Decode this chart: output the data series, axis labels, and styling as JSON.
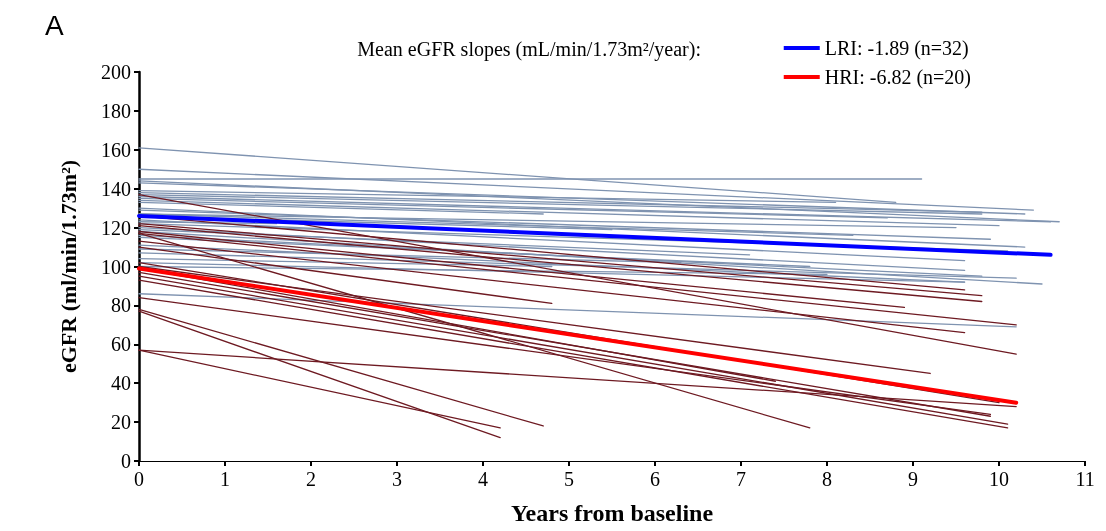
{
  "chart_data": {
    "type": "line",
    "title": "A",
    "xlabel": "Years from baseline",
    "ylabel": "eGFR (ml/min/1.73m²)",
    "legend_title": "Mean eGFR slopes (mL/min/1.73m²/year):",
    "xlim": [
      0,
      11
    ],
    "xticks": [
      0,
      1,
      2,
      3,
      4,
      5,
      6,
      7,
      8,
      9,
      10,
      11
    ],
    "ylim": [
      0,
      200
    ],
    "yticks": [
      0,
      20,
      40,
      60,
      80,
      100,
      120,
      140,
      160,
      180,
      200
    ],
    "grid": false,
    "legend": "top right",
    "marker": "none",
    "line_style": "solid",
    "series": [
      {
        "color": "#7f93b0",
        "x": [
          0,
          8.8
        ],
        "values": [
          161,
          133
        ]
      },
      {
        "color": "#7f93b0",
        "x": [
          0,
          10.4
        ],
        "values": [
          150,
          129
        ]
      },
      {
        "color": "#7f93b0",
        "x": [
          0,
          9.1
        ],
        "values": [
          145,
          145
        ]
      },
      {
        "color": "#7f93b0",
        "x": [
          0,
          10.7
        ],
        "values": [
          144,
          123
        ]
      },
      {
        "color": "#7f93b0",
        "x": [
          0,
          10.3
        ],
        "values": [
          143,
          127
        ]
      },
      {
        "color": "#7f93b0",
        "x": [
          0,
          8.1
        ],
        "values": [
          139,
          133
        ]
      },
      {
        "color": "#7f93b0",
        "x": [
          0,
          9.8
        ],
        "values": [
          138,
          128
        ]
      },
      {
        "color": "#7f93b0",
        "x": [
          0,
          9.8
        ],
        "values": [
          137,
          127
        ]
      },
      {
        "color": "#7f93b0",
        "x": [
          0,
          10.6
        ],
        "values": [
          136,
          123
        ]
      },
      {
        "color": "#7f93b0",
        "x": [
          0,
          8.7
        ],
        "values": [
          135,
          125
        ]
      },
      {
        "color": "#7f93b0",
        "x": [
          0,
          10.0
        ],
        "values": [
          134,
          121
        ]
      },
      {
        "color": "#7f93b0",
        "x": [
          0,
          4.7
        ],
        "values": [
          133,
          127
        ]
      },
      {
        "color": "#7f93b0",
        "x": [
          0,
          10.3
        ],
        "values": [
          130,
          110
        ]
      },
      {
        "color": "#7f93b0",
        "x": [
          0,
          9.9
        ],
        "values": [
          129,
          114
        ]
      },
      {
        "color": "#7f93b0",
        "x": [
          0,
          8.3
        ],
        "values": [
          127,
          116
        ]
      },
      {
        "color": "#7f93b0",
        "x": [
          0,
          9.6
        ],
        "values": [
          124,
          103
        ]
      },
      {
        "color": "#7f93b0",
        "x": [
          0,
          1.6
        ],
        "values": [
          123,
          122
        ]
      },
      {
        "color": "#7f93b0",
        "x": [
          0,
          9.6
        ],
        "values": [
          120,
          98
        ]
      },
      {
        "color": "#7f93b0",
        "x": [
          0,
          10.5
        ],
        "values": [
          118,
          91
        ]
      },
      {
        "color": "#7f93b0",
        "x": [
          0,
          9.8
        ],
        "values": [
          116,
          95
        ]
      },
      {
        "color": "#7f93b0",
        "x": [
          0,
          7.8
        ],
        "values": [
          115,
          100
        ]
      },
      {
        "color": "#7f93b0",
        "x": [
          0,
          9.6
        ],
        "values": [
          111,
          92
        ]
      },
      {
        "color": "#7f93b0",
        "x": [
          0,
          6.3
        ],
        "values": [
          109,
          102
        ]
      },
      {
        "color": "#7f93b0",
        "x": [
          0,
          4.8
        ],
        "values": [
          104,
          100
        ]
      },
      {
        "color": "#7f93b0",
        "x": [
          0,
          9.6
        ],
        "values": [
          102,
          92
        ]
      },
      {
        "color": "#7f93b0",
        "x": [
          0,
          8.0
        ],
        "values": [
          100,
          96
        ]
      },
      {
        "color": "#7f93b0",
        "x": [
          0,
          10.2
        ],
        "values": [
          86,
          69
        ]
      },
      {
        "color": "#7f93b0",
        "x": [
          0,
          9.5
        ],
        "values": [
          127,
          120
        ]
      },
      {
        "color": "#7f93b0",
        "x": [
          0,
          10.1
        ],
        "values": [
          122,
          108
        ]
      },
      {
        "color": "#7f93b0",
        "x": [
          0,
          5.5
        ],
        "values": [
          126,
          119
        ]
      },
      {
        "color": "#7f93b0",
        "x": [
          0,
          10.2
        ],
        "values": [
          107,
          94
        ]
      },
      {
        "color": "#7f93b0",
        "x": [
          0,
          7.1
        ],
        "values": [
          119,
          106
        ]
      },
      {
        "color": "#6e1a22",
        "x": [
          0,
          10.2
        ],
        "values": [
          137,
          55
        ]
      },
      {
        "color": "#6e1a22",
        "x": [
          0,
          9.8
        ],
        "values": [
          122,
          85
        ]
      },
      {
        "color": "#6e1a22",
        "x": [
          0,
          9.8
        ],
        "values": [
          121,
          82
        ]
      },
      {
        "color": "#6e1a22",
        "x": [
          0,
          8.9
        ],
        "values": [
          118,
          79
        ]
      },
      {
        "color": "#6e1a22",
        "x": [
          0,
          10.2
        ],
        "values": [
          117,
          70
        ]
      },
      {
        "color": "#6e1a22",
        "x": [
          0,
          7.8
        ],
        "values": [
          117,
          17
        ]
      },
      {
        "color": "#6e1a22",
        "x": [
          0,
          9.6
        ],
        "values": [
          113,
          66
        ]
      },
      {
        "color": "#6e1a22",
        "x": [
          0,
          4.8
        ],
        "values": [
          110,
          81
        ]
      },
      {
        "color": "#6e1a22",
        "x": [
          0,
          9.2
        ],
        "values": [
          100,
          45
        ]
      },
      {
        "color": "#6e1a22",
        "x": [
          0,
          7.4
        ],
        "values": [
          99,
          41
        ]
      },
      {
        "color": "#6e1a22",
        "x": [
          0,
          9.9
        ],
        "values": [
          97,
          23
        ]
      },
      {
        "color": "#6e1a22",
        "x": [
          0,
          10.1
        ],
        "values": [
          95,
          19
        ]
      },
      {
        "color": "#6e1a22",
        "x": [
          0,
          10.1
        ],
        "values": [
          93,
          17
        ]
      },
      {
        "color": "#6e1a22",
        "x": [
          0,
          10.2
        ],
        "values": [
          57,
          28
        ]
      },
      {
        "color": "#6e1a22",
        "x": [
          0,
          4.7
        ],
        "values": [
          78,
          18
        ]
      },
      {
        "color": "#6e1a22",
        "x": [
          0,
          4.2
        ],
        "values": [
          77,
          12
        ]
      },
      {
        "color": "#6e1a22",
        "x": [
          0,
          4.2
        ],
        "values": [
          57,
          17
        ]
      },
      {
        "color": "#6e1a22",
        "x": [
          0,
          9.9
        ],
        "values": [
          84,
          24
        ]
      },
      {
        "color": "#6e1a22",
        "x": [
          0,
          10.0
        ],
        "values": [
          102,
          30
        ]
      },
      {
        "color": "#6e1a22",
        "x": [
          0,
          9.6
        ],
        "values": [
          126,
          88
        ]
      },
      {
        "name": "LRI: -1.89 (n=32)",
        "color": "#0000ff",
        "x": [
          0,
          10.6
        ],
        "values": [
          126,
          106
        ]
      },
      {
        "name": "HRI: -6.82 (n=20)",
        "color": "#ff0000",
        "x": [
          0,
          10.2
        ],
        "values": [
          99,
          30
        ]
      }
    ]
  }
}
